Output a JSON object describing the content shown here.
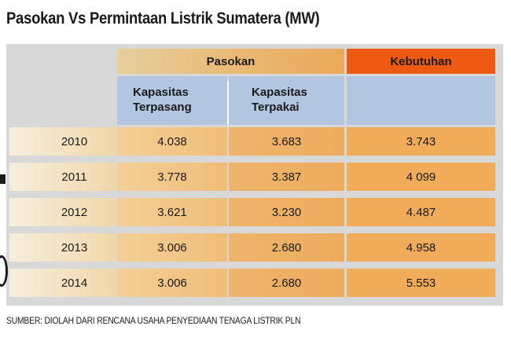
{
  "chart_data": {
    "type": "table",
    "title": "Pasokan Vs Permintaan Listrik Sumatera (MW)",
    "column_groups": [
      {
        "label": "Pasokan",
        "columns": [
          "Kapasitas Terpasang",
          "Kapasitas Terpakai"
        ]
      },
      {
        "label": "Kebutuhan",
        "columns": [
          ""
        ]
      }
    ],
    "columns": {
      "terpasang": [
        "Kapasitas",
        "Terpasang"
      ],
      "terpakai": [
        "Kapasitas",
        "Terpakai"
      ]
    },
    "rows": [
      {
        "year": "2010",
        "terpasang": "4.038",
        "terpakai": "3.683",
        "kebutuhan": "3.743"
      },
      {
        "year": "2011",
        "terpasang": "3.778",
        "terpakai": "3.387",
        "kebutuhan": "4 099"
      },
      {
        "year": "2012",
        "terpasang": "3.621",
        "terpakai": "3.230",
        "kebutuhan": "4.487"
      },
      {
        "year": "2013",
        "terpasang": "3.006",
        "terpakai": "2.680",
        "kebutuhan": "4.958"
      },
      {
        "year": "2014",
        "terpasang": "3.006",
        "terpakai": "2.680",
        "kebutuhan": "5.553"
      }
    ],
    "source": "SUMBER: DIOLAH DARI RENCANA USAHA PENYEDIAAN TENAGA LISTRIK PLN"
  },
  "headers": {
    "pasokan": "Pasokan",
    "kebutuhan": "Kebutuhan"
  },
  "colors": {
    "pasokan_header": "#eab66f",
    "kebutuhan_header": "#ee5a12",
    "subheader": "#b2c6e2",
    "panel": "#d8d8d8"
  }
}
